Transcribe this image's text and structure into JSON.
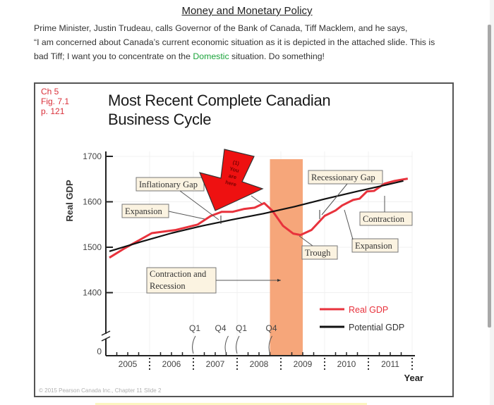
{
  "document": {
    "title": "Money and Monetary Policy",
    "lines": [
      "Prime Minister, Justin Trudeau, calls Governor of the Bank of Canada, Tiff Macklem, and he says,",
      "“I am concerned about Canada’s current economic situation as it is depicted in the attached slide. This is"
    ],
    "line3_before": "bad Tiff; I want you to concentrate on the ",
    "line3_highlight": "Domestic",
    "line3_after": " situation.  Do something!",
    "highlight_color": "#1aa33a"
  },
  "slide": {
    "reference": [
      "Ch 5",
      "Fig. 7.1",
      "p. 121"
    ],
    "title_line1": "Most Recent Complete Canadian",
    "title_line2": "Business Cycle",
    "copyright": "© 2015 Pearson Canada Inc., Chapter 11 Slide 2",
    "you_are_here": [
      "(1)",
      "You",
      "are",
      "here"
    ]
  },
  "chart_data": {
    "type": "line",
    "title": "Most Recent Complete Canadian Business Cycle",
    "xlabel": "Year",
    "ylabel": "Real GDP",
    "ylim": [
      1400,
      1700
    ],
    "y_break_to_zero": true,
    "y_ticks": [
      1400,
      1500,
      1600,
      1700
    ],
    "y_zero_label": "0",
    "x_range": [
      2005,
      2012
    ],
    "x_tick_labels": [
      "2005",
      "2006",
      "2007",
      "2008",
      "2009",
      "2010",
      "2011"
    ],
    "quarter_markers": [
      {
        "label": "Q1",
        "x": 2007.0
      },
      {
        "label": "Q4",
        "x": 2007.75
      },
      {
        "label": "Q1",
        "x": 2008.0
      },
      {
        "label": "Q4",
        "x": 2008.75
      }
    ],
    "recession_shading": {
      "from": 2008.75,
      "to": 2009.5,
      "color": "#f6a67a"
    },
    "legend": {
      "position": "bottom-right",
      "entries": [
        {
          "name": "Real GDP",
          "color": "#e8323c"
        },
        {
          "name": "Potential GDP",
          "color": "#111111"
        }
      ]
    },
    "series": [
      {
        "name": "Real GDP",
        "color": "#e8323c",
        "x": [
          2005.08,
          2005.4,
          2006.05,
          2006.6,
          2007.1,
          2007.4,
          2007.65,
          2007.9,
          2008.15,
          2008.4,
          2008.62,
          2008.8,
          2009.05,
          2009.28,
          2009.45,
          2009.7,
          2010.0,
          2010.25,
          2010.4,
          2010.65,
          2010.8,
          2010.97,
          2011.13,
          2011.37,
          2011.6,
          2011.9
        ],
        "values": [
          1477,
          1496,
          1531,
          1538,
          1550,
          1569,
          1578,
          1578,
          1584,
          1587,
          1597,
          1581,
          1547,
          1530,
          1527,
          1538,
          1569,
          1581,
          1592,
          1604,
          1607,
          1623,
          1624,
          1640,
          1646,
          1651
        ]
      },
      {
        "name": "Potential GDP",
        "color": "#111111",
        "x": [
          2005.08,
          2005.8,
          2006.5,
          2007.2,
          2007.9,
          2008.6,
          2009.3,
          2010.0,
          2010.7,
          2011.4,
          2011.8
        ],
        "values": [
          1491,
          1512,
          1531,
          1547,
          1561,
          1574,
          1589,
          1606,
          1622,
          1637,
          1646
        ]
      }
    ],
    "annotations": [
      {
        "text": "Inflationary Gap"
      },
      {
        "text": "Expansion"
      },
      {
        "text": "Contraction and Recession"
      },
      {
        "text": "Recessionary Gap"
      },
      {
        "text": "Contraction"
      },
      {
        "text": "Expansion"
      },
      {
        "text": "Trough"
      }
    ]
  },
  "annotations": {
    "inflationary_gap": "Inflationary Gap",
    "expansion_1": "Expansion",
    "contraction_recession_1": "Contraction and",
    "contraction_recession_2": "Recession",
    "recessionary_gap": "Recessionary Gap",
    "contraction": "Contraction",
    "expansion_2": "Expansion",
    "trough": "Trough"
  },
  "legend": {
    "real": "Real GDP",
    "potential": "Potential GDP"
  }
}
